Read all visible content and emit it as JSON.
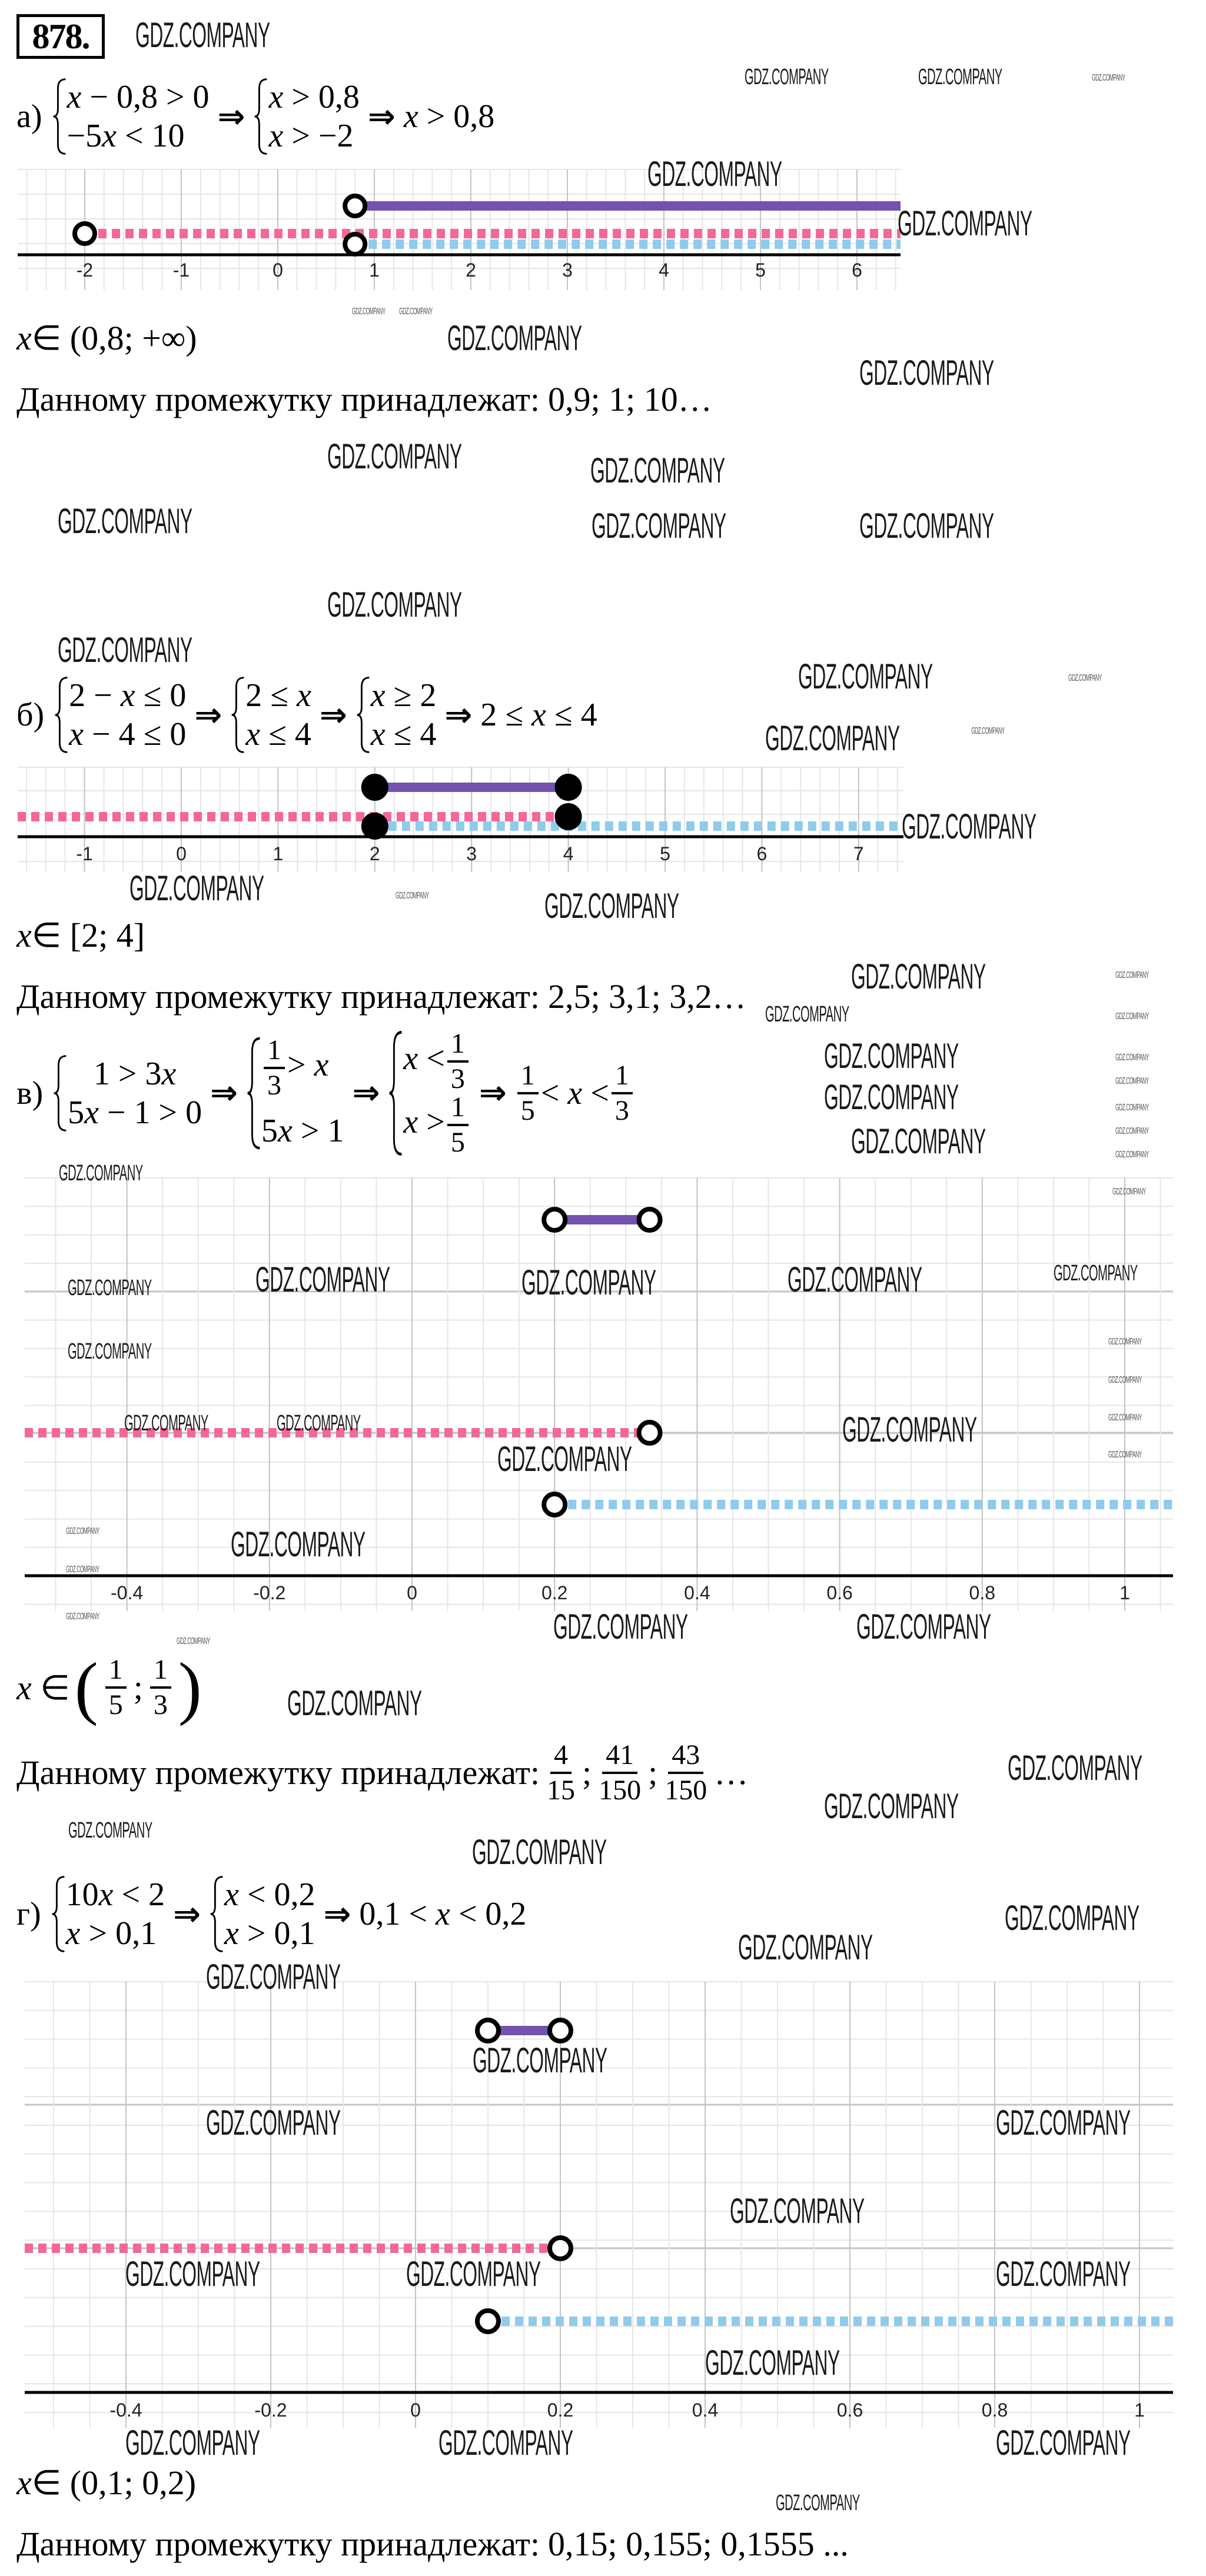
{
  "problem_number": "878.",
  "watermark": "GDZ.COMPANY",
  "arrow": "⇒",
  "belongs_label": "Данному промежутку принадлежат:",
  "part_a": {
    "label": "а)",
    "sys1": [
      "x − 0,8 > 0",
      "−5x < 10"
    ],
    "sys2": [
      "x > 0,8",
      "x > −2"
    ],
    "result": "x > 0,8",
    "answer": "x ∈ (0,8; +∞)",
    "values": "0,9; 1; 10…"
  },
  "part_b": {
    "label": "б)",
    "sys1": [
      "2 − x ≤ 0",
      "x − 4 ≤ 0"
    ],
    "sys2": [
      "2 ≤ x",
      "x ≤ 4"
    ],
    "sys3": [
      "x ≥ 2",
      "x ≤ 4"
    ],
    "result": "2 ≤ x ≤ 4",
    "answer": "x ∈ [2; 4]",
    "values": "2,5; 3,1; 3,2…"
  },
  "part_v": {
    "label": "в)",
    "sys1": [
      "1 > 3x",
      "5x − 1 > 0"
    ],
    "sys2": {
      "l1_num": "1",
      "l1_den": "3",
      "l1_rest": "> x",
      "l2": "5x > 1"
    },
    "sys3": {
      "l1_pre": "x <",
      "l1_num": "1",
      "l1_den": "3",
      "l2_pre": "x >",
      "l2_num": "1",
      "l2_den": "5"
    },
    "result": {
      "lo_num": "1",
      "lo_den": "5",
      "mid": "< x <",
      "hi_num": "1",
      "hi_den": "3"
    },
    "answer": {
      "pre": "x ∈",
      "open": "(",
      "lo_num": "1",
      "lo_den": "5",
      "sep": ";",
      "hi_num": "1",
      "hi_den": "3",
      "close": ")"
    },
    "values": [
      {
        "num": "4",
        "den": "15"
      },
      {
        "num": "41",
        "den": "150"
      },
      {
        "num": "43",
        "den": "150"
      }
    ],
    "sep": ";",
    "ellipsis": "…"
  },
  "part_g": {
    "label": "г)",
    "sys1": [
      "10x < 2",
      "x > 0,1"
    ],
    "sys2": [
      "x < 0,2",
      "x > 0,1"
    ],
    "result": "0,1 < x < 0,2",
    "answer": "x ∈ (0,1; 0,2)",
    "values": "0,15; 0,155; 0,1555 ..."
  },
  "colors": {
    "solution": "#7352b0",
    "ineq1": "#f3679a",
    "ineq2": "#8ecbed",
    "grid": "#e6e6e6",
    "grid_major": "#c4c4c4"
  },
  "chart_data": [
    {
      "type": "number-line",
      "part": "а",
      "ticks": [
        -2,
        -1,
        0,
        1,
        2,
        3,
        4,
        5,
        6
      ],
      "tick_labels": [
        "-2",
        "-1",
        "0",
        "1",
        "2",
        "3",
        "4",
        "5",
        "6"
      ],
      "xlim": [
        -2.7,
        6.4
      ],
      "series": [
        {
          "name": "solution",
          "from": 0.8,
          "to": null,
          "from_closed": false,
          "to_closed": false,
          "style": "solid"
        },
        {
          "name": "ineq1",
          "from": -2,
          "to": null,
          "from_closed": false,
          "to_closed": false,
          "style": "dashed"
        },
        {
          "name": "ineq2",
          "from": 0.8,
          "to": null,
          "from_closed": false,
          "to_closed": false,
          "style": "dashed"
        }
      ]
    },
    {
      "type": "number-line",
      "part": "б",
      "ticks": [
        -1,
        0,
        1,
        2,
        3,
        4,
        5,
        6,
        7
      ],
      "tick_labels": [
        "-1",
        "0",
        "1",
        "2",
        "3",
        "4",
        "5",
        "6",
        "7"
      ],
      "xlim": [
        -1.7,
        7.4
      ],
      "series": [
        {
          "name": "solution",
          "from": 2,
          "to": 4,
          "from_closed": true,
          "to_closed": true,
          "style": "solid"
        },
        {
          "name": "ineq1",
          "from": null,
          "to": 4,
          "from_closed": false,
          "to_closed": true,
          "style": "dashed"
        },
        {
          "name": "ineq2",
          "from": 2,
          "to": null,
          "from_closed": true,
          "to_closed": false,
          "style": "dashed"
        }
      ]
    },
    {
      "type": "number-line",
      "part": "в",
      "ticks": [
        -0.4,
        -0.2,
        0,
        0.2,
        0.4,
        0.6,
        0.8,
        1
      ],
      "tick_labels": [
        "-0.4",
        "-0.2",
        "0",
        "0.2",
        "0.4",
        "0.6",
        "0.8",
        "1"
      ],
      "xlim": [
        -0.54,
        1.07
      ],
      "series": [
        {
          "name": "solution",
          "from": 0.2,
          "to": 0.3333,
          "from_closed": false,
          "to_closed": false,
          "style": "solid"
        },
        {
          "name": "ineq1",
          "from": null,
          "to": 0.3333,
          "from_closed": false,
          "to_closed": false,
          "style": "dashed"
        },
        {
          "name": "ineq2",
          "from": 0.2,
          "to": null,
          "from_closed": false,
          "to_closed": false,
          "style": "dashed"
        }
      ]
    },
    {
      "type": "number-line",
      "part": "г",
      "ticks": [
        -0.4,
        -0.2,
        0,
        0.2,
        0.4,
        0.6,
        0.8,
        1
      ],
      "tick_labels": [
        "-0.4",
        "-0.2",
        "0",
        "0.2",
        "0.4",
        "0.6",
        "0.8",
        "1"
      ],
      "xlim": [
        -0.54,
        1.04
      ],
      "series": [
        {
          "name": "solution",
          "from": 0.1,
          "to": 0.2,
          "from_closed": false,
          "to_closed": false,
          "style": "solid"
        },
        {
          "name": "ineq1",
          "from": null,
          "to": 0.2,
          "from_closed": false,
          "to_closed": false,
          "style": "dashed"
        },
        {
          "name": "ineq2",
          "from": 0.1,
          "to": null,
          "from_closed": false,
          "to_closed": false,
          "style": "dashed"
        }
      ]
    }
  ]
}
